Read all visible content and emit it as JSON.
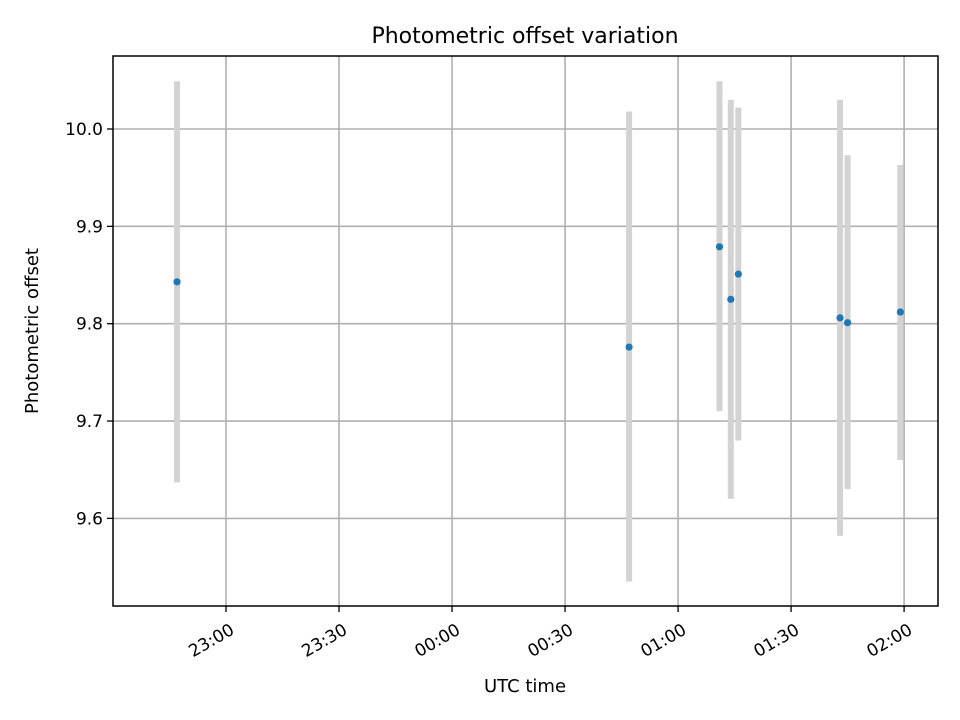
{
  "chart_data": {
    "type": "scatter",
    "title": "Photometric offset variation",
    "xlabel": "UTC time",
    "ylabel": "Photometric offset",
    "x_scale": "time",
    "x_tick_labels": [
      "23:00",
      "23:30",
      "00:00",
      "00:30",
      "01:00",
      "01:30",
      "02:00"
    ],
    "y_tick_labels": [
      "9.6",
      "9.7",
      "9.8",
      "9.9",
      "10.0"
    ],
    "ylim": [
      9.51,
      10.075
    ],
    "xlim": [
      "22:30",
      "02:09"
    ],
    "grid": true,
    "point_color": "#1f77b4",
    "errorbar_color": "#d3d3d3",
    "points": [
      {
        "x": "22:47",
        "y": 9.843,
        "y_low": 9.637,
        "y_high": 10.049
      },
      {
        "x": "00:47",
        "y": 9.776,
        "y_low": 9.535,
        "y_high": 10.018
      },
      {
        "x": "01:11",
        "y": 9.879,
        "y_low": 9.71,
        "y_high": 10.049
      },
      {
        "x": "01:14",
        "y": 9.825,
        "y_low": 9.62,
        "y_high": 10.03
      },
      {
        "x": "01:16",
        "y": 9.851,
        "y_low": 9.68,
        "y_high": 10.022
      },
      {
        "x": "01:43",
        "y": 9.806,
        "y_low": 9.582,
        "y_high": 10.03
      },
      {
        "x": "01:45",
        "y": 9.801,
        "y_low": 9.63,
        "y_high": 9.973
      },
      {
        "x": "01:59",
        "y": 9.812,
        "y_low": 9.66,
        "y_high": 9.963
      }
    ]
  }
}
